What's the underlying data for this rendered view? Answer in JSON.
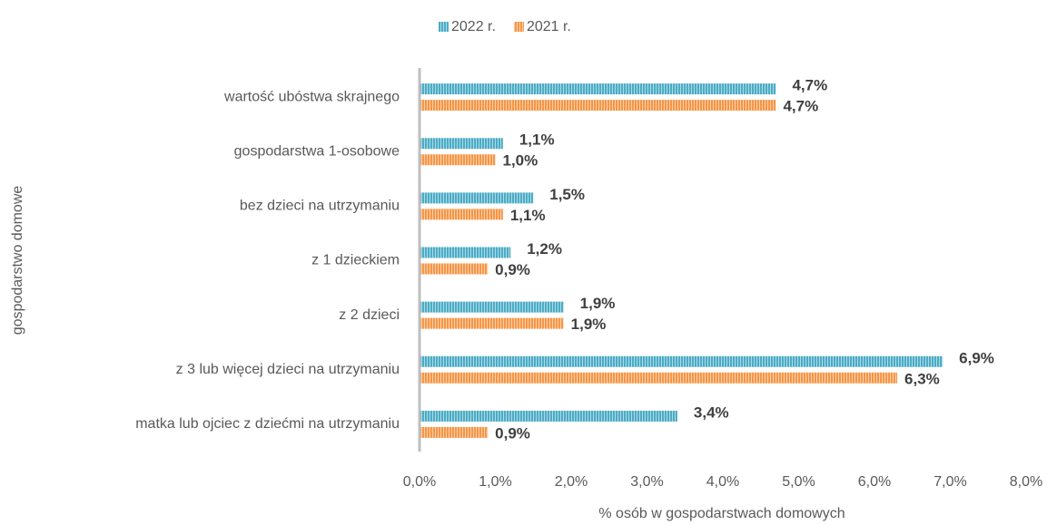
{
  "chart_data": {
    "type": "hbar",
    "x_label": "% osób w gospodarstwach domowych",
    "y_label": "gospodarstwo domowe",
    "categories": [
      "wartość ubóstwa skrajnego",
      "gospodarstwa 1-osobowe",
      "bez dzieci na utrzymaniu",
      "z 1 dzieckiem",
      "z 2 dzieci",
      "z 3 lub więcej dzieci na utrzymaniu",
      "matka lub ojciec z dziećmi na utrzymaniu"
    ],
    "series": [
      {
        "name": "2022 r.",
        "color": "#4bacc6",
        "values": [
          4.7,
          1.1,
          1.5,
          1.2,
          1.9,
          6.9,
          3.4
        ],
        "value_labels": [
          "4,7%",
          "1,1%",
          "1,5%",
          "1,2%",
          "1,9%",
          "6,9%",
          "3,4%"
        ]
      },
      {
        "name": "2021 r.",
        "color": "#f79646",
        "values": [
          4.7,
          1.0,
          1.1,
          0.9,
          1.9,
          6.3,
          0.9
        ],
        "value_labels": [
          "4,7%",
          "1,0%",
          "1,1%",
          "0,9%",
          "1,9%",
          "6,3%",
          "0,9%"
        ]
      }
    ],
    "xlim": [
      0,
      8
    ],
    "xticks": [
      {
        "value": 0,
        "label": "0,0%"
      },
      {
        "value": 1,
        "label": "1,0%"
      },
      {
        "value": 2,
        "label": "2,0%"
      },
      {
        "value": 3,
        "label": "3,0%"
      },
      {
        "value": 4,
        "label": "4,0%"
      },
      {
        "value": 5,
        "label": "5,0%"
      },
      {
        "value": 6,
        "label": "6,0%"
      },
      {
        "value": 7,
        "label": "7,0%"
      },
      {
        "value": 8,
        "label": "8,0%"
      }
    ],
    "legend": "top",
    "grid": false
  }
}
